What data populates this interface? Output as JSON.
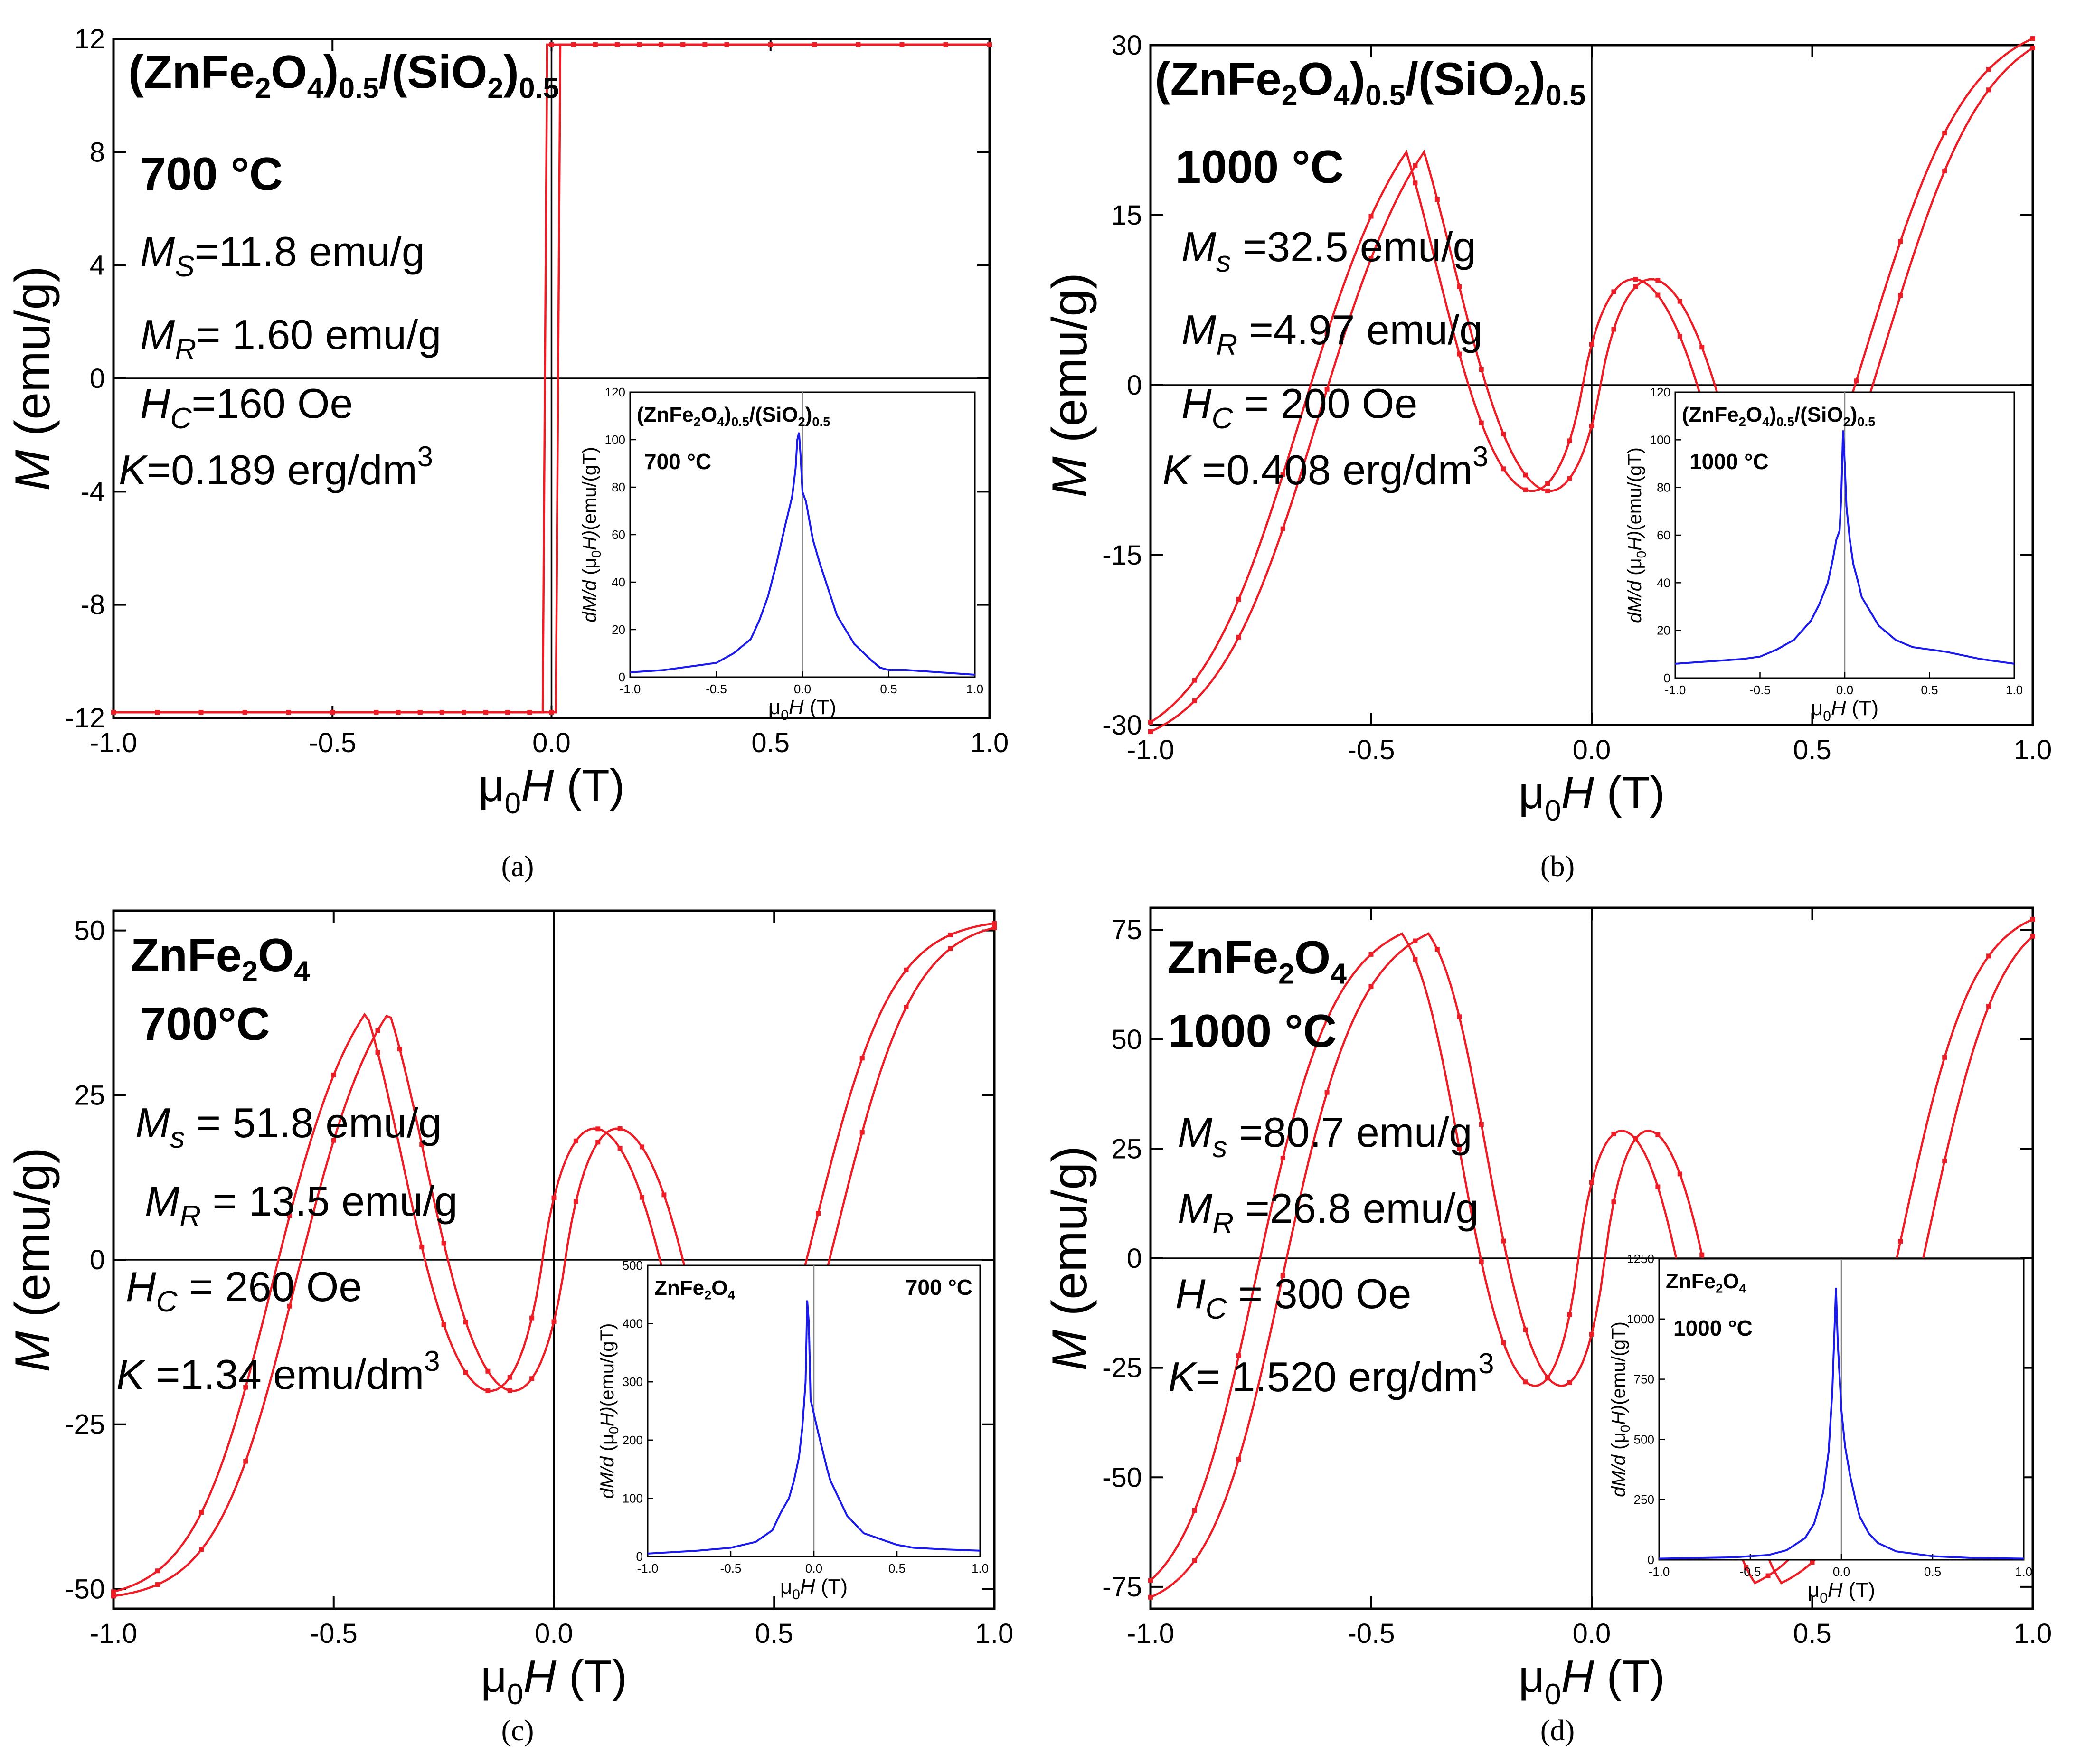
{
  "figure": {
    "background": "#ffffff",
    "main_color": "#ee1c25",
    "inset_color": "#1a1aee",
    "axis_color": "#000000"
  },
  "chart_data": [
    {
      "id": "a",
      "type": "line",
      "caption": "(a)",
      "title_main": "(ZnFe",
      "title_parts": [
        "(ZnFe",
        "2",
        "O",
        "4",
        ")",
        "0.5",
        "/(SiO",
        "2",
        ")",
        "0.5"
      ],
      "temperature": "700 °C",
      "annotations": [
        {
          "sym": "M",
          "sub": "S",
          "text": "=11.8 emu/g"
        },
        {
          "sym": "M",
          "sub": "R",
          "text": "= 1.60 emu/g"
        },
        {
          "sym": "H",
          "sub": "C",
          "text": "=160 Oe"
        },
        {
          "sym": "K",
          "sub": "",
          "text": "=0.189 erg/dm",
          "sup": "3"
        }
      ],
      "xlabel": "μ0H (T)",
      "xlabel_parts": [
        "μ",
        "0",
        "H",
        " (T)"
      ],
      "ylabel": "M (emu/g)",
      "ylabel_parts": [
        "M",
        " (emu/g)"
      ],
      "xlim": [
        -1.0,
        1.0
      ],
      "ylim": [
        -12,
        12
      ],
      "xticks": [
        -1.0,
        -0.5,
        0.0,
        0.5,
        1.0
      ],
      "xtick_labels": [
        "-1.0",
        "-0.5",
        "0.0",
        "0.5",
        "1.0"
      ],
      "yticks": [
        -12,
        -8,
        -4,
        0,
        4,
        8,
        12
      ],
      "ytick_labels": [
        "-12",
        "-8",
        "-4",
        "0",
        "4",
        "8",
        "12"
      ],
      "loop": {
        "Ms": 11.8,
        "Mr": 1.6,
        "Hc": 0.016,
        "edge_M": 11.8
      },
      "series": [
        {
          "name": "ascending branch",
          "x": [
            -1.0,
            -0.9,
            -0.8,
            -0.7,
            -0.6,
            -0.5,
            -0.4,
            -0.35,
            -0.3,
            -0.25,
            -0.2,
            -0.15,
            -0.1,
            -0.05,
            0.0,
            0.05,
            0.1,
            0.15,
            0.2,
            0.25,
            0.3,
            0.4,
            0.5,
            0.6,
            0.7,
            0.8,
            0.9,
            1.0
          ]
        },
        {
          "name": "descending branch",
          "x": [
            1.0,
            0.9,
            0.8,
            0.7,
            0.6,
            0.5,
            0.4,
            0.35,
            0.3,
            0.25,
            0.2,
            0.15,
            0.1,
            0.05,
            0.0,
            -0.05,
            -0.1,
            -0.15,
            -0.2,
            -0.25,
            -0.3,
            -0.4,
            -0.5,
            -0.6,
            -0.7,
            -0.8,
            -0.9,
            -1.0
          ]
        }
      ],
      "inset": {
        "title_parts": [
          "(ZnFe",
          "2",
          "O",
          "4",
          ")",
          "0.5",
          "/(SiO",
          "2",
          ")",
          "0.5"
        ],
        "temperature": "700 °C",
        "temp_position": "left",
        "xlabel_parts": [
          "μ",
          "0",
          "H",
          " (T)"
        ],
        "ylabel_parts": [
          "dM/d",
          " (μ",
          "0",
          "H)",
          "(emu/(gT)"
        ],
        "xlim": [
          -1.0,
          1.0
        ],
        "ylim": [
          0,
          120
        ],
        "xticks": [
          -1.0,
          -0.5,
          0.0,
          0.5,
          1.0
        ],
        "xtick_labels": [
          "-1.0",
          "-0.5",
          "0.0",
          "0.5",
          "1.0"
        ],
        "yticks": [
          0,
          20,
          40,
          60,
          80,
          100,
          120
        ],
        "ytick_labels": [
          "0",
          "20",
          "40",
          "60",
          "80",
          "100",
          "120"
        ],
        "x": [
          -1.0,
          -0.8,
          -0.6,
          -0.5,
          -0.4,
          -0.3,
          -0.25,
          -0.2,
          -0.15,
          -0.1,
          -0.08,
          -0.06,
          -0.04,
          -0.03,
          -0.02,
          -0.01,
          0.0,
          0.02,
          0.04,
          0.06,
          0.1,
          0.15,
          0.2,
          0.3,
          0.4,
          0.45,
          0.5,
          0.6,
          0.8,
          1.0
        ],
        "y": [
          2,
          3,
          5,
          6,
          10,
          16,
          24,
          34,
          48,
          64,
          70,
          76,
          88,
          100,
          103,
          92,
          78,
          74,
          66,
          58,
          48,
          37,
          26,
          14,
          7,
          4,
          3,
          3,
          2,
          1
        ]
      }
    },
    {
      "id": "b",
      "type": "line",
      "caption": "(b)",
      "title_parts": [
        "(ZnFe",
        "2",
        "O",
        "4",
        ")",
        "0.5",
        "/(SiO",
        "2",
        ")",
        "0.5"
      ],
      "temperature": "1000 °C",
      "annotations": [
        {
          "sym": "M",
          "sub": "s",
          "text": " =32.5 emu/g"
        },
        {
          "sym": "M",
          "sub": "R",
          "text": " =4.97 emu/g"
        },
        {
          "sym": "H",
          "sub": "C",
          "text": " = 200 Oe"
        },
        {
          "sym": "K",
          "sub": "",
          "text": " =0.408 erg/dm",
          "sup": "3"
        }
      ],
      "xlabel_parts": [
        "μ",
        "0",
        "H",
        " (T)"
      ],
      "ylabel_parts": [
        "M",
        " (emu/g)"
      ],
      "xlim": [
        -1.0,
        1.0
      ],
      "ylim": [
        -30,
        30
      ],
      "xticks": [
        -1.0,
        -0.5,
        0.0,
        0.5,
        1.0
      ],
      "xtick_labels": [
        "-1.0",
        "-0.5",
        "0.0",
        "0.5",
        "1.0"
      ],
      "yticks": [
        -30,
        -15,
        0,
        15,
        30
      ],
      "ytick_labels": [
        "-30",
        "-15",
        "0",
        "15",
        "30"
      ],
      "loop": {
        "Ms": 32.5,
        "Mr": 4.97,
        "Hc": 0.02,
        "edge_M": 30.2
      },
      "series": [
        {
          "name": "ascending branch",
          "x": [
            -1.0,
            -0.9,
            -0.8,
            -0.7,
            -0.6,
            -0.5,
            -0.4,
            -0.35,
            -0.3,
            -0.25,
            -0.2,
            -0.15,
            -0.1,
            -0.05,
            0.0,
            0.05,
            0.1,
            0.15,
            0.2,
            0.25,
            0.3,
            0.4,
            0.5,
            0.6,
            0.7,
            0.8,
            0.9,
            1.0
          ]
        },
        {
          "name": "descending branch",
          "x": [
            1.0,
            0.9,
            0.8,
            0.7,
            0.6,
            0.5,
            0.4,
            0.35,
            0.3,
            0.25,
            0.2,
            0.15,
            0.1,
            0.05,
            0.0,
            -0.05,
            -0.1,
            -0.15,
            -0.2,
            -0.25,
            -0.3,
            -0.4,
            -0.5,
            -0.6,
            -0.7,
            -0.8,
            -0.9,
            -1.0
          ]
        }
      ],
      "inset": {
        "title_parts": [
          "(ZnFe",
          "2",
          "O",
          "4",
          ")",
          "0.5",
          "/(SiO",
          "2",
          ")",
          "0.5"
        ],
        "temperature": "1000 °C",
        "temp_position": "left",
        "xlabel_parts": [
          "μ",
          "0",
          "H",
          " (T)"
        ],
        "ylabel_parts": [
          "dM/d",
          " (μ",
          "0",
          "H)",
          "(emu/(gT)"
        ],
        "xlim": [
          -1.0,
          1.0
        ],
        "ylim": [
          0,
          120
        ],
        "xticks": [
          -1.0,
          -0.5,
          0.0,
          0.5,
          1.0
        ],
        "xtick_labels": [
          "-1.0",
          "-0.5",
          "0.0",
          "0.5",
          "1.0"
        ],
        "yticks": [
          0,
          20,
          40,
          60,
          80,
          100,
          120
        ],
        "ytick_labels": [
          "0",
          "20",
          "40",
          "60",
          "80",
          "100",
          "120"
        ],
        "x": [
          -1.0,
          -0.8,
          -0.6,
          -0.5,
          -0.4,
          -0.3,
          -0.2,
          -0.15,
          -0.1,
          -0.07,
          -0.05,
          -0.03,
          -0.02,
          -0.01,
          0.0,
          0.01,
          0.03,
          0.05,
          0.08,
          0.1,
          0.15,
          0.2,
          0.3,
          0.4,
          0.5,
          0.6,
          0.8,
          1.0
        ],
        "y": [
          6,
          7,
          8,
          9,
          12,
          16,
          24,
          31,
          40,
          50,
          58,
          62,
          78,
          104,
          90,
          72,
          58,
          48,
          40,
          34,
          28,
          22,
          16,
          13,
          12,
          11,
          8,
          6
        ]
      }
    },
    {
      "id": "c",
      "type": "line",
      "caption": "(c)",
      "title_parts": [
        "ZnFe",
        "2",
        "O",
        "4"
      ],
      "temperature": "700°C",
      "annotations": [
        {
          "sym": "M",
          "sub": "s",
          "text": " = 51.8 emu/g"
        },
        {
          "sym": "M",
          "sub": "R",
          "text": " = 13.5 emu/g"
        },
        {
          "sym": "H",
          "sub": "C",
          "text": " = 260 Oe"
        },
        {
          "sym": "K",
          "sub": "",
          "text": " =1.34 emu/dm",
          "sup": "3"
        }
      ],
      "xlabel_parts": [
        "μ",
        "0",
        "H",
        " (T)"
      ],
      "ylabel_parts": [
        "M",
        " (emu/g)"
      ],
      "xlim": [
        -1.0,
        1.0
      ],
      "ylim": [
        -53,
        53
      ],
      "xticks": [
        -1.0,
        -0.5,
        0.0,
        0.5,
        1.0
      ],
      "xtick_labels": [
        "-1.0",
        "-0.5",
        "0.0",
        "0.5",
        "1.0"
      ],
      "yticks": [
        -50,
        -25,
        0,
        25,
        50
      ],
      "ytick_labels": [
        "-50",
        "-25",
        "0",
        "25",
        "50"
      ],
      "loop": {
        "Ms": 51.8,
        "Mr": 13.5,
        "Hc": 0.026,
        "edge_M": 50.8
      },
      "series": [
        {
          "name": "ascending branch",
          "x": [
            -1.0,
            -0.9,
            -0.8,
            -0.7,
            -0.6,
            -0.5,
            -0.4,
            -0.35,
            -0.3,
            -0.25,
            -0.2,
            -0.15,
            -0.1,
            -0.05,
            0.0,
            0.05,
            0.1,
            0.15,
            0.2,
            0.25,
            0.3,
            0.4,
            0.5,
            0.6,
            0.7,
            0.8,
            0.9,
            1.0
          ]
        },
        {
          "name": "descending branch",
          "x": [
            1.0,
            0.9,
            0.8,
            0.7,
            0.6,
            0.5,
            0.4,
            0.35,
            0.3,
            0.25,
            0.2,
            0.15,
            0.1,
            0.05,
            0.0,
            -0.05,
            -0.1,
            -0.15,
            -0.2,
            -0.25,
            -0.3,
            -0.4,
            -0.5,
            -0.6,
            -0.7,
            -0.8,
            -0.9,
            -1.0
          ]
        }
      ],
      "inset": {
        "title_parts": [
          "ZnFe",
          "2",
          "O",
          "4"
        ],
        "temperature": "700 °C",
        "temp_position": "right",
        "xlabel_parts": [
          "μ",
          "0",
          "H",
          " (T)"
        ],
        "ylabel_parts": [
          "dM/d",
          " (μ",
          "0",
          "H)",
          "(emu/(gT)"
        ],
        "xlim": [
          -1.0,
          1.0
        ],
        "ylim": [
          0,
          500
        ],
        "xticks": [
          -1.0,
          -0.5,
          0.0,
          0.5,
          1.0
        ],
        "xtick_labels": [
          "-1.0",
          "-0.5",
          "0.0",
          "0.5",
          "1.0"
        ],
        "yticks": [
          0,
          100,
          200,
          300,
          400,
          500
        ],
        "ytick_labels": [
          "0",
          "100",
          "200",
          "300",
          "400",
          "500"
        ],
        "x": [
          -1.0,
          -0.7,
          -0.5,
          -0.35,
          -0.25,
          -0.2,
          -0.15,
          -0.12,
          -0.09,
          -0.07,
          -0.05,
          -0.04,
          -0.03,
          -0.02,
          0.0,
          0.02,
          0.05,
          0.08,
          0.1,
          0.15,
          0.2,
          0.3,
          0.4,
          0.5,
          0.6,
          0.8,
          1.0
        ],
        "y": [
          5,
          10,
          15,
          25,
          45,
          75,
          100,
          130,
          170,
          220,
          300,
          440,
          400,
          270,
          245,
          220,
          185,
          150,
          130,
          100,
          70,
          40,
          30,
          20,
          15,
          12,
          10
        ]
      }
    },
    {
      "id": "d",
      "type": "line",
      "caption": "(d)",
      "title_parts": [
        "ZnFe",
        "2",
        "O",
        "4"
      ],
      "temperature": "1000 °C",
      "annotations": [
        {
          "sym": "M",
          "sub": "s",
          "text": " =80.7 emu/g"
        },
        {
          "sym": "M",
          "sub": "R",
          "text": " =26.8 emu/g"
        },
        {
          "sym": "H",
          "sub": "C",
          "text": " = 300 Oe"
        },
        {
          "sym": "K",
          "sub": "",
          "text": "= 1.520 erg/dm",
          "sup": "3"
        }
      ],
      "xlabel_parts": [
        "μ",
        "0",
        "H",
        " (T)"
      ],
      "ylabel_parts": [
        "M",
        " (emu/g)"
      ],
      "xlim": [
        -1.0,
        1.0
      ],
      "ylim": [
        -80,
        80
      ],
      "xticks": [
        -1.0,
        -0.5,
        0.0,
        0.5,
        1.0
      ],
      "xtick_labels": [
        "-1.0",
        "-0.5",
        "0.0",
        "0.5",
        "1.0"
      ],
      "yticks": [
        -75,
        -50,
        -25,
        0,
        25,
        50,
        75
      ],
      "ytick_labels": [
        "-75",
        "-50",
        "-25",
        "0",
        "25",
        "50",
        "75"
      ],
      "loop": {
        "Ms": 80.7,
        "Mr": 26.8,
        "Hc": 0.03,
        "edge_M": 75.8
      },
      "series": [
        {
          "name": "ascending branch",
          "x": [
            -1.0,
            -0.9,
            -0.8,
            -0.7,
            -0.6,
            -0.5,
            -0.4,
            -0.35,
            -0.3,
            -0.25,
            -0.2,
            -0.15,
            -0.1,
            -0.05,
            0.0,
            0.05,
            0.1,
            0.15,
            0.2,
            0.25,
            0.3,
            0.4,
            0.5,
            0.6,
            0.7,
            0.8,
            0.9,
            1.0
          ]
        },
        {
          "name": "descending branch",
          "x": [
            1.0,
            0.9,
            0.8,
            0.7,
            0.6,
            0.5,
            0.4,
            0.35,
            0.3,
            0.25,
            0.2,
            0.15,
            0.1,
            0.05,
            0.0,
            -0.05,
            -0.1,
            -0.15,
            -0.2,
            -0.25,
            -0.3,
            -0.4,
            -0.5,
            -0.6,
            -0.7,
            -0.8,
            -0.9,
            -1.0
          ]
        }
      ],
      "inset": {
        "title_parts": [
          "ZnFe",
          "2",
          "O",
          "4"
        ],
        "temperature": "1000 °C",
        "temp_position": "left",
        "xlabel_parts": [
          "μ",
          "0",
          "H",
          " (T)"
        ],
        "ylabel_parts": [
          "dM/d",
          " (μ",
          "0",
          "H)",
          "(emu/(gT)"
        ],
        "xlim": [
          -1.0,
          1.0
        ],
        "ylim": [
          0,
          1250
        ],
        "xticks": [
          -1.0,
          -0.5,
          0.0,
          0.5,
          1.0
        ],
        "xtick_labels": [
          "-1.0",
          "-0.5",
          "0.0",
          "0.5",
          "1.0"
        ],
        "yticks": [
          0,
          250,
          500,
          750,
          1000,
          1250
        ],
        "ytick_labels": [
          "0",
          "250",
          "500",
          "750",
          "1000",
          "1250"
        ],
        "x": [
          -1.0,
          -0.6,
          -0.4,
          -0.3,
          -0.2,
          -0.15,
          -0.1,
          -0.07,
          -0.05,
          -0.03,
          -0.02,
          0.0,
          0.02,
          0.05,
          0.08,
          0.1,
          0.15,
          0.2,
          0.3,
          0.5,
          0.7,
          1.0
        ],
        "y": [
          5,
          10,
          20,
          40,
          90,
          150,
          280,
          450,
          700,
          1130,
          900,
          620,
          470,
          340,
          240,
          180,
          110,
          70,
          35,
          15,
          8,
          5
        ]
      }
    }
  ]
}
